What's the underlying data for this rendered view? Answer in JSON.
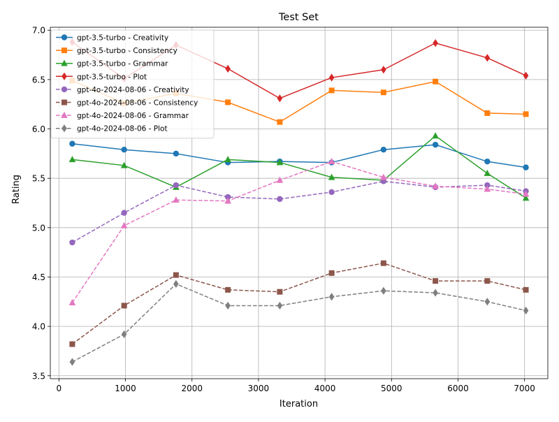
{
  "chart_data": {
    "type": "line",
    "title": "Test Set",
    "xlabel": "Iteration",
    "ylabel": "Rating",
    "xlim": [
      -130,
      7350
    ],
    "ylim": [
      3.47,
      7.03
    ],
    "xticks": [
      0,
      1000,
      2000,
      3000,
      4000,
      5000,
      6000,
      7000
    ],
    "yticks": [
      3.5,
      4.0,
      4.5,
      5.0,
      5.5,
      6.0,
      6.5,
      7.0
    ],
    "xtick_labels": [
      "0",
      "1000",
      "2000",
      "3000",
      "4000",
      "5000",
      "6000",
      "7000"
    ],
    "ytick_labels": [
      "3.5",
      "4.0",
      "4.5",
      "5.0",
      "5.5",
      "6.0",
      "6.5",
      "7.0"
    ],
    "grid": true,
    "legend_position": "top-left",
    "x": [
      200,
      980,
      1760,
      2540,
      3320,
      4100,
      4880,
      5660,
      6440,
      7020
    ],
    "series": [
      {
        "name": "gpt-3.5-turbo - Creativity",
        "color": "#1f77b4",
        "marker": "circle",
        "dashed": false,
        "values": [
          5.85,
          5.79,
          5.75,
          5.66,
          5.67,
          5.66,
          5.79,
          5.84,
          5.67,
          5.61
        ]
      },
      {
        "name": "gpt-3.5-turbo - Consistency",
        "color": "#ff7f0e",
        "marker": "square",
        "dashed": false,
        "values": [
          6.49,
          6.26,
          6.36,
          6.27,
          6.07,
          6.39,
          6.37,
          6.48,
          6.16,
          6.15
        ]
      },
      {
        "name": "gpt-3.5-turbo - Grammar",
        "color": "#2ca02c",
        "marker": "triangle",
        "dashed": false,
        "values": [
          5.69,
          5.63,
          5.41,
          5.69,
          5.66,
          5.51,
          5.48,
          5.93,
          5.55,
          5.3
        ]
      },
      {
        "name": "gpt-3.5-turbo - Plot",
        "color": "#d62728",
        "marker": "diamond",
        "dashed": false,
        "values": [
          6.88,
          6.51,
          6.85,
          6.61,
          6.31,
          6.52,
          6.6,
          6.87,
          6.72,
          6.54
        ]
      },
      {
        "name": "gpt-4o-2024-08-06 - Creativity",
        "color": "#9467bd",
        "marker": "circle",
        "dashed": true,
        "values": [
          4.85,
          5.15,
          5.43,
          5.31,
          5.29,
          5.36,
          5.47,
          5.41,
          5.43,
          5.37
        ]
      },
      {
        "name": "gpt-4o-2024-08-06 - Consistency",
        "color": "#8c564b",
        "marker": "square",
        "dashed": true,
        "values": [
          3.82,
          4.21,
          4.52,
          4.37,
          4.35,
          4.54,
          4.64,
          4.46,
          4.46,
          4.37
        ]
      },
      {
        "name": "gpt-4o-2024-08-06 - Grammar",
        "color": "#e377c2",
        "marker": "triangle",
        "dashed": true,
        "values": [
          4.24,
          5.02,
          5.28,
          5.27,
          5.48,
          5.67,
          5.51,
          5.42,
          5.39,
          5.34
        ]
      },
      {
        "name": "gpt-4o-2024-08-06 - Plot",
        "color": "#7f7f7f",
        "marker": "diamond",
        "dashed": true,
        "values": [
          3.64,
          3.92,
          4.43,
          4.21,
          4.21,
          4.3,
          4.36,
          4.34,
          4.25,
          4.16
        ]
      }
    ]
  }
}
